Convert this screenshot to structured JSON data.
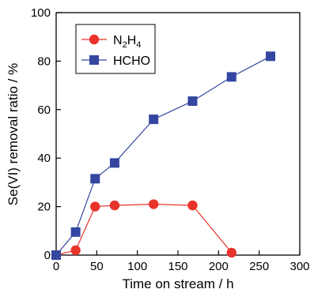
{
  "chart_data": {
    "type": "line",
    "xlabel": "Time on stream / h",
    "ylabel": "Se(VI) removal ratio / %",
    "xlim": [
      0,
      300
    ],
    "ylim": [
      0,
      100
    ],
    "x_ticks": [
      0,
      50,
      100,
      150,
      200,
      250,
      300
    ],
    "y_ticks": [
      0,
      20,
      40,
      60,
      80,
      100
    ],
    "grid": false,
    "legend_position": "top-left",
    "series": [
      {
        "name": "N2H4",
        "color": "#e8332a",
        "marker": "circle",
        "x": [
          0,
          24,
          48,
          72,
          120,
          168,
          216
        ],
        "y": [
          0,
          2,
          20,
          20.5,
          21,
          20.5,
          1
        ]
      },
      {
        "name": "HCHO",
        "color": "#3446a0",
        "marker": "square",
        "x": [
          0,
          24,
          48,
          72,
          120,
          168,
          216,
          264
        ],
        "y": [
          0,
          9.5,
          31.5,
          38,
          56,
          63.5,
          73.5,
          82
        ]
      }
    ]
  }
}
